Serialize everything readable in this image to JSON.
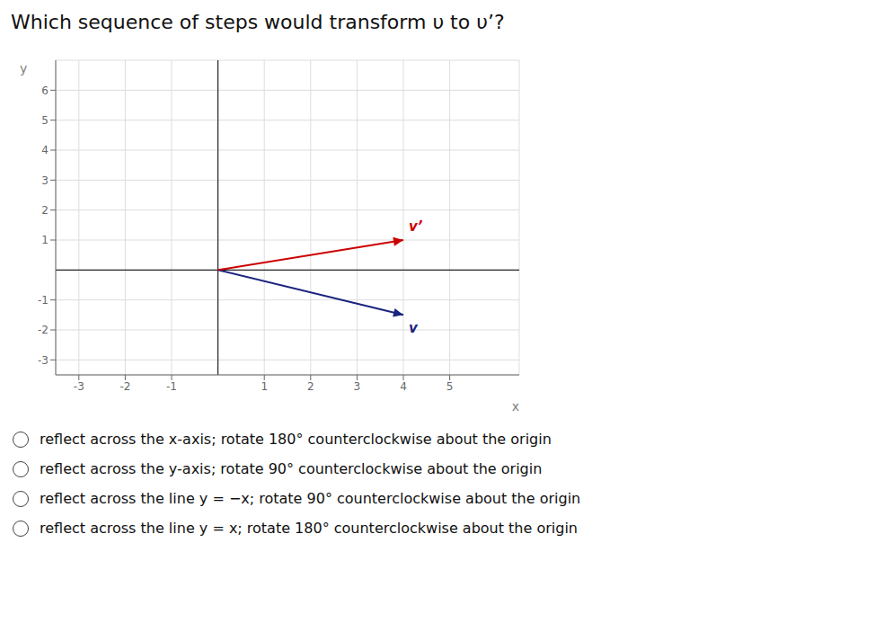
{
  "chart_data": {
    "type": "line",
    "title": "Which sequence of steps would transform υ to υ’?",
    "x_label": "x",
    "y_label": "y",
    "series": [
      {
        "name": "v",
        "color": "#1a237e",
        "x": [
          0,
          4
        ],
        "values": [
          0,
          -1.5
        ]
      },
      {
        "name": "v’",
        "color": "#cc0000",
        "x": [
          0,
          4
        ],
        "values": [
          0,
          1
        ]
      }
    ],
    "xlim": [
      -3.5,
      6.5
    ],
    "ylim": [
      -3.5,
      7.0
    ],
    "xticks": [
      -3,
      -2,
      -1,
      1,
      2,
      3,
      4,
      5
    ],
    "yticks": [
      -3,
      -2,
      -1,
      1,
      2,
      3,
      4,
      5,
      6
    ],
    "grid": true,
    "marker": "arrow",
    "annotations": [
      "reflect across the x-axis; rotate 180° counterclockwise about the origin",
      "reflect across the y-axis; rotate 90° counterclockwise about the origin",
      "reflect across the line y = −x; rotate 90° counterclockwise about the origin",
      "reflect across the line y = x; rotate 180° counterclockwise about the origin"
    ]
  }
}
